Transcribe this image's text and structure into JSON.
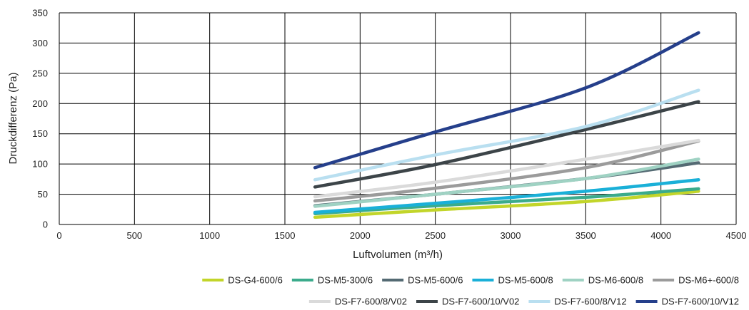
{
  "chart_data": {
    "type": "line",
    "xlabel": "Luftvolumen (m³/h)",
    "ylabel": "Druckdifferenz (Pa)",
    "xlim": [
      0,
      4500
    ],
    "ylim": [
      0,
      350
    ],
    "x_ticks": [
      "0",
      "500",
      "1000",
      "1500",
      "2000",
      "2500",
      "3000",
      "3500",
      "4000",
      "4500"
    ],
    "y_ticks": [
      "0",
      "50",
      "100",
      "150",
      "200",
      "250",
      "300",
      "350"
    ],
    "grid": true,
    "legend": "bottom",
    "series": [
      {
        "name": "DS-G4-600/6",
        "color": "#c2d52a",
        "points": [
          [
            1700,
            12
          ],
          [
            2500,
            24
          ],
          [
            3500,
            38
          ],
          [
            4250,
            55
          ]
        ]
      },
      {
        "name": "DS-M5-300/6",
        "color": "#3bab8c",
        "points": [
          [
            1700,
            18
          ],
          [
            2500,
            31
          ],
          [
            3500,
            45
          ],
          [
            4250,
            59
          ]
        ]
      },
      {
        "name": "DS-M5-600/6",
        "color": "#546a73",
        "points": [
          [
            1700,
            31
          ],
          [
            2500,
            50
          ],
          [
            3500,
            76
          ],
          [
            4250,
            102
          ]
        ]
      },
      {
        "name": "DS-M5-600/8",
        "color": "#1ab0d8",
        "points": [
          [
            1700,
            20
          ],
          [
            2500,
            35
          ],
          [
            3500,
            55
          ],
          [
            4250,
            74
          ]
        ]
      },
      {
        "name": "DS-M6-600/8",
        "color": "#9fd2c3",
        "points": [
          [
            1700,
            30
          ],
          [
            2500,
            50
          ],
          [
            3500,
            76
          ],
          [
            4250,
            108
          ]
        ]
      },
      {
        "name": "DS-M6+-600/8",
        "color": "#9b9b9b",
        "points": [
          [
            1700,
            39
          ],
          [
            2500,
            60
          ],
          [
            3500,
            94
          ],
          [
            4250,
            138
          ]
        ]
      },
      {
        "name": "DS-F7-600/8/V02",
        "color": "#dadada",
        "points": [
          [
            1700,
            46
          ],
          [
            2500,
            70
          ],
          [
            3500,
            108
          ],
          [
            4250,
            139
          ]
        ]
      },
      {
        "name": "DS-F7-600/10/V02",
        "color": "#3c4448",
        "points": [
          [
            1700,
            62
          ],
          [
            2500,
            99
          ],
          [
            3500,
            157
          ],
          [
            4250,
            203
          ]
        ]
      },
      {
        "name": "DS-F7-600/8/V12",
        "color": "#b9dff0",
        "points": [
          [
            1700,
            74
          ],
          [
            2500,
            115
          ],
          [
            3500,
            162
          ],
          [
            4250,
            222
          ]
        ]
      },
      {
        "name": "DS-F7-600/10/V12",
        "color": "#253f8b",
        "points": [
          [
            1700,
            94
          ],
          [
            2500,
            153
          ],
          [
            3500,
            226
          ],
          [
            4250,
            317
          ]
        ]
      }
    ]
  }
}
